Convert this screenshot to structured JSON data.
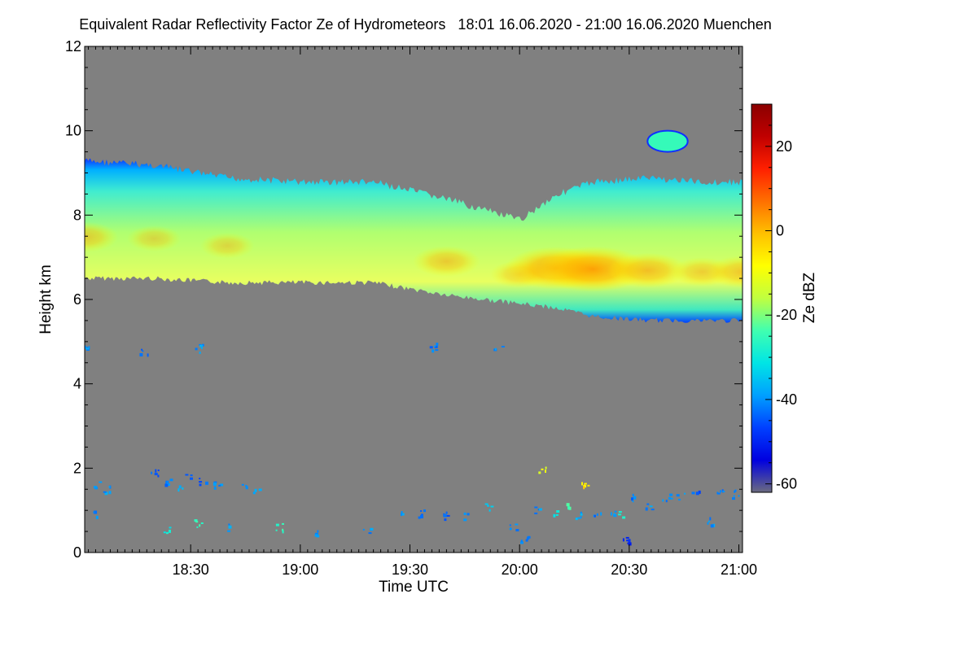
{
  "chart_data": {
    "type": "heatmap",
    "title": "Equivalent Radar Reflectivity Factor Ze of Hydrometeors   18:01 16.06.2020 - 21:00 16.06.2020 Muenchen",
    "xlabel": "Time UTC",
    "ylabel": "Height km",
    "x_tick_labels": [
      "18:30",
      "19:00",
      "19:30",
      "20:00",
      "20:30",
      "21:00"
    ],
    "x_tick_minutes": [
      1110,
      1140,
      1170,
      1200,
      1230,
      1260
    ],
    "xlim_minutes": [
      1081,
      1261
    ],
    "y_ticks": [
      0,
      2,
      4,
      6,
      8,
      10,
      12
    ],
    "ylim": [
      0,
      12
    ],
    "colorbar": {
      "label": "Ze dBZ",
      "range": [
        -62,
        30
      ],
      "ticks": [
        20,
        0,
        -20,
        -40,
        -60
      ],
      "colors": [
        "#6b6b80",
        "#0000e0",
        "#0040ff",
        "#00a0ff",
        "#00e5e5",
        "#40ffb0",
        "#c0ff40",
        "#ffff00",
        "#ffc000",
        "#ff7000",
        "#ff2000",
        "#c00000",
        "#8b0000"
      ]
    },
    "background_color": "#808080",
    "cloud_layer": {
      "time_minutes": [
        1081,
        1100,
        1120,
        1140,
        1160,
        1180,
        1200,
        1210,
        1220,
        1235,
        1250,
        1261
      ],
      "top_km": [
        9.3,
        9.2,
        8.9,
        8.8,
        8.8,
        8.4,
        7.9,
        8.5,
        8.8,
        8.9,
        8.8,
        8.8
      ],
      "base_km": [
        6.5,
        6.5,
        6.4,
        6.4,
        6.4,
        6.1,
        5.9,
        5.8,
        5.6,
        5.5,
        5.5,
        5.5
      ],
      "core_max_dbz": [
        -5,
        -8,
        -8,
        -10,
        -12,
        -5,
        -7,
        3,
        5,
        -2,
        -6,
        -4
      ]
    },
    "isolated_cell": {
      "time_minutes": [
        1235,
        1246
      ],
      "height_km": [
        9.5,
        10.0
      ],
      "dbz": -25
    },
    "echoes": [
      {
        "t": 1082,
        "h": 4.85,
        "dbz": -40
      },
      {
        "t": 1097,
        "h": 4.8,
        "dbz": -45
      },
      {
        "t": 1112,
        "h": 4.85,
        "dbz": -40
      },
      {
        "t": 1176,
        "h": 4.88,
        "dbz": -42
      },
      {
        "t": 1194,
        "h": 4.85,
        "dbz": -40
      },
      {
        "t": 1084,
        "h": 1.6,
        "dbz": -42
      },
      {
        "t": 1087,
        "h": 1.5,
        "dbz": -40
      },
      {
        "t": 1100,
        "h": 1.9,
        "dbz": -44
      },
      {
        "t": 1104,
        "h": 1.7,
        "dbz": -42
      },
      {
        "t": 1107,
        "h": 1.6,
        "dbz": -38
      },
      {
        "t": 1109,
        "h": 1.8,
        "dbz": -42
      },
      {
        "t": 1113,
        "h": 1.7,
        "dbz": -44
      },
      {
        "t": 1117,
        "h": 1.6,
        "dbz": -40
      },
      {
        "t": 1124,
        "h": 1.6,
        "dbz": -42
      },
      {
        "t": 1128,
        "h": 1.5,
        "dbz": -40
      },
      {
        "t": 1083,
        "h": 0.9,
        "dbz": -40
      },
      {
        "t": 1103,
        "h": 0.55,
        "dbz": -30
      },
      {
        "t": 1112,
        "h": 0.7,
        "dbz": -25
      },
      {
        "t": 1121,
        "h": 0.6,
        "dbz": -40
      },
      {
        "t": 1134,
        "h": 0.6,
        "dbz": -25
      },
      {
        "t": 1145,
        "h": 0.5,
        "dbz": -40
      },
      {
        "t": 1158,
        "h": 0.55,
        "dbz": -40
      },
      {
        "t": 1168,
        "h": 0.9,
        "dbz": -40
      },
      {
        "t": 1173,
        "h": 0.95,
        "dbz": -42
      },
      {
        "t": 1180,
        "h": 0.9,
        "dbz": -44
      },
      {
        "t": 1185,
        "h": 0.9,
        "dbz": -40
      },
      {
        "t": 1191,
        "h": 1.1,
        "dbz": -35
      },
      {
        "t": 1198,
        "h": 0.6,
        "dbz": -40
      },
      {
        "t": 1201,
        "h": 0.3,
        "dbz": -40
      },
      {
        "t": 1205,
        "h": 1.0,
        "dbz": -40
      },
      {
        "t": 1209,
        "h": 1.0,
        "dbz": -30
      },
      {
        "t": 1213,
        "h": 1.1,
        "dbz": -25
      },
      {
        "t": 1216,
        "h": 0.9,
        "dbz": -38
      },
      {
        "t": 1221,
        "h": 0.95,
        "dbz": -42
      },
      {
        "t": 1225,
        "h": 0.9,
        "dbz": -40
      },
      {
        "t": 1228,
        "h": 0.9,
        "dbz": -28
      },
      {
        "t": 1230,
        "h": 1.3,
        "dbz": -42
      },
      {
        "t": 1235,
        "h": 1.1,
        "dbz": -40
      },
      {
        "t": 1240,
        "h": 1.3,
        "dbz": -42
      },
      {
        "t": 1244,
        "h": 1.35,
        "dbz": -40
      },
      {
        "t": 1248,
        "h": 1.4,
        "dbz": -44
      },
      {
        "t": 1252,
        "h": 0.75,
        "dbz": -40
      },
      {
        "t": 1255,
        "h": 1.45,
        "dbz": -42
      },
      {
        "t": 1259,
        "h": 1.4,
        "dbz": -40
      },
      {
        "t": 1229,
        "h": 0.3,
        "dbz": -50
      },
      {
        "t": 1218,
        "h": 1.6,
        "dbz": -5
      },
      {
        "t": 1206,
        "h": 2.0,
        "dbz": -10
      }
    ]
  }
}
